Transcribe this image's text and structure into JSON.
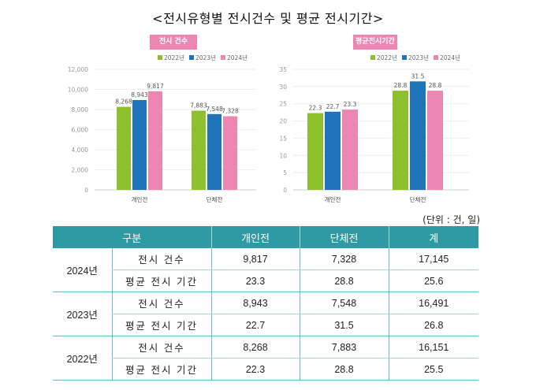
{
  "page": {
    "title": "<전시유형별 전시건수 및 평균 전시기간>",
    "unit": "(단위 : 건, 일)"
  },
  "colors": {
    "series_2022": "#8dc02c",
    "series_2023": "#1f73b8",
    "series_2024": "#ec86b3",
    "badge": "#ec86b3",
    "table_header": "#2e9aa3"
  },
  "chart_data": [
    {
      "type": "bar",
      "title": "전시 건수",
      "categories": [
        "개인전",
        "단체전"
      ],
      "series": [
        {
          "name": "2022년",
          "values": [
            8268,
            7883
          ],
          "labels": [
            "8,268",
            "7,883"
          ]
        },
        {
          "name": "2023년",
          "values": [
            8943,
            7548
          ],
          "labels": [
            "8,943",
            "7,548"
          ]
        },
        {
          "name": "2024년",
          "values": [
            9817,
            7328
          ],
          "labels": [
            "9,817",
            "7,328"
          ]
        }
      ],
      "yticks": [
        0,
        2000,
        4000,
        6000,
        8000,
        10000,
        12000
      ],
      "ytick_labels": [
        "0",
        "2,000",
        "4,000",
        "6,000",
        "8,000",
        "10,000",
        "12,000"
      ],
      "ylim": [
        0,
        12000
      ],
      "xlabel": "",
      "ylabel": "",
      "grid": true,
      "legend": "top-right"
    },
    {
      "type": "bar",
      "title": "평균전시기간",
      "categories": [
        "개인전",
        "단체전"
      ],
      "series": [
        {
          "name": "2022년",
          "values": [
            22.3,
            28.8
          ],
          "labels": [
            "22.3",
            "28.8"
          ]
        },
        {
          "name": "2023년",
          "values": [
            22.7,
            31.5
          ],
          "labels": [
            "22.7",
            "31.5"
          ]
        },
        {
          "name": "2024년",
          "values": [
            23.3,
            28.8
          ],
          "labels": [
            "23.3",
            "28.8"
          ]
        }
      ],
      "yticks": [
        0,
        5,
        10,
        15,
        20,
        25,
        30,
        35
      ],
      "ytick_labels": [
        "0",
        "5",
        "10",
        "15",
        "20",
        "25",
        "30",
        "35"
      ],
      "ylim": [
        0,
        35
      ],
      "xlabel": "",
      "ylabel": "",
      "grid": true,
      "legend": "top-right"
    }
  ],
  "table": {
    "headers": [
      "구분",
      "개인전",
      "단체전",
      "계"
    ],
    "groups": [
      {
        "year": "2024년",
        "rows": [
          {
            "label": "전시 건수",
            "individual": "9,817",
            "group": "7,328",
            "total": "17,145"
          },
          {
            "label": "평균 전시 기간",
            "individual": "23.3",
            "group": "28.8",
            "total": "25.6"
          }
        ]
      },
      {
        "year": "2023년",
        "rows": [
          {
            "label": "전시 건수",
            "individual": "8,943",
            "group": "7,548",
            "total": "16,491"
          },
          {
            "label": "평균 전시 기간",
            "individual": "22.7",
            "group": "31.5",
            "total": "26.8"
          }
        ]
      },
      {
        "year": "2022년",
        "rows": [
          {
            "label": "전시 건수",
            "individual": "8,268",
            "group": "7,883",
            "total": "16,151"
          },
          {
            "label": "평균 전시 기간",
            "individual": "22.3",
            "group": "28.8",
            "total": "25.5"
          }
        ]
      }
    ]
  }
}
